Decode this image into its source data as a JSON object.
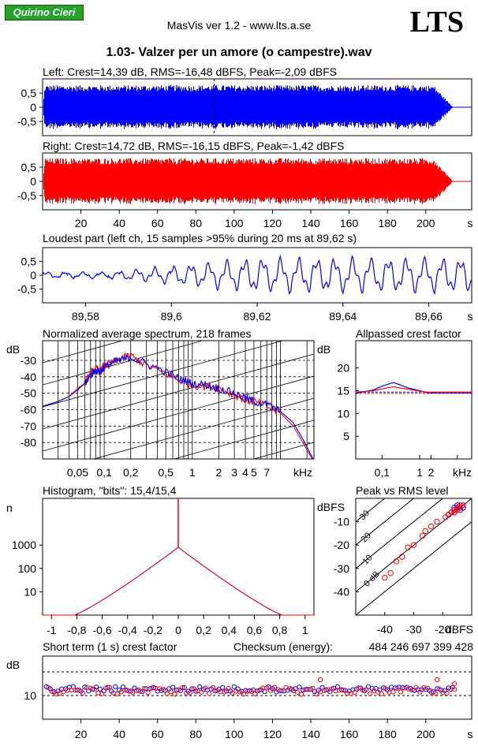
{
  "header": {
    "logo_text": "Quirino Cieri",
    "app_title": "MasVis ver 1.2 - www.lts.a.se",
    "brand": "LTS",
    "file_title": "1.03- Valzer per un amore (o campestre).wav"
  },
  "colors": {
    "left": "#0000ff",
    "right": "#ff0000",
    "logo_bg": "#2aa02a"
  },
  "chart_data": [
    {
      "id": "left-waveform",
      "type": "area",
      "title": "Left: Crest=14,39 dB, RMS=-16,48 dBFS, Peak=-2,09 dBFS",
      "ylim": [
        -1,
        1
      ],
      "yticks": [
        "0,5",
        "0",
        "-0,5"
      ],
      "ytick_values": [
        0.5,
        0,
        -0.5
      ],
      "xlim": [
        0,
        224
      ],
      "marker_x": 89.62,
      "envelope": {
        "amplitude": 0.78,
        "fade_start_s": 204,
        "end_s": 214
      }
    },
    {
      "id": "right-waveform",
      "type": "area",
      "title": "Right: Crest=14,72 dB, RMS=-16,15 dBFS, Peak=-1,42 dBFS",
      "ylim": [
        -1,
        1
      ],
      "yticks": [
        "0,5",
        "0",
        "-0,5"
      ],
      "ytick_values": [
        0.5,
        0,
        -0.5
      ],
      "xlim": [
        0,
        224
      ],
      "xticks": [
        "20",
        "40",
        "60",
        "80",
        "100",
        "120",
        "140",
        "160",
        "180",
        "200"
      ],
      "xtick_values": [
        20,
        40,
        60,
        80,
        100,
        120,
        140,
        160,
        180,
        200
      ],
      "xunit": "s",
      "envelope": {
        "amplitude": 0.82,
        "fade_start_s": 204,
        "end_s": 214
      }
    },
    {
      "id": "loudest-part",
      "type": "line",
      "title": "Loudest part (left  ch, 15 samples >95% during 20 ms at 89,62 s)",
      "ylim": [
        -1,
        1
      ],
      "yticks": [
        "0,5",
        "0",
        "-0,5"
      ],
      "ytick_values": [
        0.5,
        0,
        -0.5
      ],
      "xlim": [
        89.57,
        89.67
      ],
      "xticks": [
        "89,58",
        "89,6",
        "89,62",
        "89,64",
        "89,66"
      ],
      "xtick_values": [
        89.58,
        89.6,
        89.62,
        89.64,
        89.66
      ],
      "xunit": "s"
    },
    {
      "id": "avg-spectrum",
      "type": "line",
      "title": "Normalized average spectrum, 218 frames",
      "ylabel": "dB",
      "ylim": [
        -90,
        -18
      ],
      "yticks": [
        "-30",
        "-40",
        "-50",
        "-60",
        "-70",
        "-80"
      ],
      "ytick_values": [
        -30,
        -40,
        -50,
        -60,
        -70,
        -80
      ],
      "xlim": [
        0.02,
        24
      ],
      "xticks": [
        "0,05",
        "0,1",
        "0,2",
        "0,5",
        "1",
        "2",
        "3",
        "4",
        "5",
        "7"
      ],
      "xtick_values": [
        0.05,
        0.1,
        0.2,
        0.5,
        1,
        2,
        3,
        4,
        5,
        7
      ],
      "xunit": "kHz",
      "series": [
        {
          "color": "#ff0000",
          "x": [
            0.02,
            0.03,
            0.04,
            0.05,
            0.06,
            0.07,
            0.08,
            0.09,
            0.1,
            0.12,
            0.15,
            0.2,
            0.3,
            0.5,
            0.7,
            1,
            1.5,
            2,
            3,
            4,
            5,
            7,
            10,
            14,
            18,
            24
          ],
          "y": [
            -58,
            -55,
            -52,
            -47,
            -44,
            -38,
            -35,
            -37,
            -33,
            -32,
            -29,
            -27,
            -33,
            -38,
            -42,
            -45,
            -46,
            -47,
            -51,
            -54,
            -55,
            -58,
            -62,
            -70,
            -80,
            -92
          ]
        },
        {
          "color": "#0000ff",
          "x": [
            0.02,
            0.03,
            0.04,
            0.05,
            0.06,
            0.07,
            0.08,
            0.09,
            0.1,
            0.12,
            0.15,
            0.2,
            0.3,
            0.5,
            0.7,
            1,
            1.5,
            2,
            3,
            4,
            5,
            7,
            10,
            14,
            18,
            24
          ],
          "y": [
            -58,
            -55,
            -52,
            -48,
            -44,
            -39,
            -36,
            -37,
            -34,
            -32,
            -30,
            -28,
            -32,
            -37,
            -41,
            -44,
            -45,
            -47,
            -50,
            -53,
            -55,
            -57,
            -61,
            -68,
            -78,
            -91
          ]
        }
      ]
    },
    {
      "id": "allpassed-crest",
      "type": "line",
      "title": "Allpassed crest factor",
      "ylabel": "dB",
      "ylim": [
        0,
        26
      ],
      "yticks": [
        "20",
        "15",
        "10",
        "5"
      ],
      "ytick_values": [
        20,
        15,
        10,
        5
      ],
      "xlim": [
        0.02,
        24
      ],
      "xticks": [
        "0,1",
        "1",
        "2"
      ],
      "xtick_values": [
        0.1,
        1,
        2
      ],
      "xunit": "kHz",
      "ref_lines": [
        14.4,
        14.7
      ],
      "series": [
        {
          "color": "#0000ff",
          "x": [
            0.02,
            0.06,
            0.1,
            0.2,
            0.3,
            0.5,
            1,
            1.5,
            2,
            4,
            24
          ],
          "y": [
            14.4,
            15.2,
            16.0,
            16.8,
            16.3,
            15.6,
            15.0,
            14.6,
            14.5,
            14.5,
            14.5
          ]
        },
        {
          "color": "#ff0000",
          "x": [
            0.02,
            0.06,
            0.1,
            0.2,
            0.3,
            0.5,
            1,
            1.5,
            2,
            4,
            24
          ],
          "y": [
            14.7,
            15.0,
            15.4,
            15.9,
            15.6,
            15.3,
            14.9,
            14.7,
            14.7,
            14.7,
            14.7
          ]
        }
      ]
    },
    {
      "id": "histogram",
      "type": "area",
      "title": "Histogram, \"bits\": 15,4/15,4",
      "ylabel": "n",
      "yscale": "log",
      "ylim": [
        1,
        100000
      ],
      "yticks": [
        "1000",
        "100",
        "10"
      ],
      "ytick_values": [
        1000,
        100,
        10
      ],
      "xlim": [
        -1.07,
        1.07
      ],
      "xticks": [
        "-1",
        "-0,8",
        "-0,6",
        "-0,4",
        "-0,2",
        "0",
        "0,2",
        "0,4",
        "0,6",
        "0,8",
        "1"
      ],
      "xtick_values": [
        -1,
        -0.8,
        -0.6,
        -0.4,
        -0.2,
        0,
        0.2,
        0.4,
        0.6,
        0.8,
        1
      ],
      "peak_count": 800,
      "edge_amplitude": 0.82
    },
    {
      "id": "peak-vs-rms",
      "type": "scatter",
      "title": "Peak vs RMS level",
      "ylabel": "dBFS",
      "xlabel": "dBFS",
      "xlim": [
        -50,
        -10
      ],
      "ylim": [
        -50,
        0
      ],
      "xticks": [
        "-40",
        "-30",
        "-20"
      ],
      "xtick_values": [
        -40,
        -30,
        -20
      ],
      "yticks": [
        "-10",
        "-20",
        "-30",
        "-40"
      ],
      "ytick_values": [
        -10,
        -20,
        -30,
        -40
      ],
      "diagonal_labels": [
        "40",
        "30",
        "20",
        "10",
        "0 dB"
      ],
      "diagonal_offsets": [
        40,
        30,
        20,
        10,
        0
      ],
      "series": [
        {
          "color": "#0000ff",
          "x": [
            -16,
            -15,
            -14,
            -17,
            -16,
            -15,
            -18,
            -14,
            -13,
            -16
          ],
          "y": [
            -4,
            -3,
            -5,
            -6,
            -5,
            -4,
            -7,
            -3,
            -4,
            -6
          ]
        },
        {
          "color": "#ff0000",
          "x": [
            -15,
            -14,
            -16,
            -17,
            -13,
            -18,
            -15,
            -14,
            -19,
            -16,
            -22,
            -24,
            -26,
            -27,
            -30,
            -32,
            -34,
            -36,
            -38,
            -40
          ],
          "y": [
            -4,
            -3,
            -5,
            -6,
            -3,
            -7,
            -5,
            -4,
            -8,
            -6,
            -10,
            -12,
            -14,
            -16,
            -20,
            -21,
            -25,
            -27,
            -32,
            -34
          ]
        }
      ]
    },
    {
      "id": "short-term-crest",
      "type": "scatter",
      "title": "Short term (1 s) crest factor",
      "ylabel": "dB",
      "checksum_label": "Checksum (energy):",
      "checksum_value": "484 246 697 399 428",
      "ylim": [
        4,
        20
      ],
      "yticks": [
        "10"
      ],
      "ytick_values": [
        10
      ],
      "dashed_levels": [
        10,
        16
      ],
      "xlim": [
        0,
        224
      ],
      "xticks": [
        "20",
        "40",
        "60",
        "80",
        "100",
        "120",
        "140",
        "160",
        "180",
        "200"
      ],
      "xtick_values": [
        20,
        40,
        60,
        80,
        100,
        120,
        140,
        160,
        180,
        200
      ],
      "xunit": "s",
      "series": [
        {
          "color": "#0000ff",
          "typical": 11.6,
          "spread": 0.7
        },
        {
          "color": "#ff0000",
          "typical": 11.2,
          "spread": 0.9,
          "outliers": [
            [
              145,
              14.0
            ],
            [
              206,
              14.0
            ],
            [
              215,
              13.0
            ]
          ]
        }
      ]
    }
  ]
}
